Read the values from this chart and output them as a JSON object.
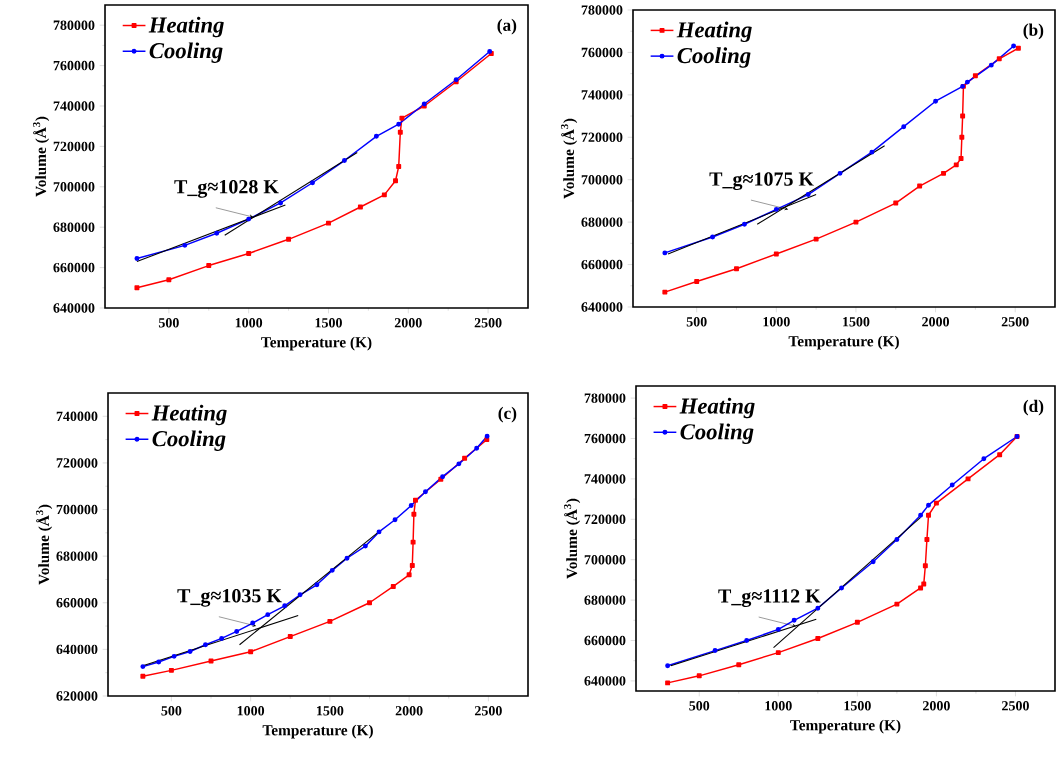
{
  "chart_data": [
    {
      "type": "line",
      "title": "(a)",
      "xlabel": "Temperature (K)",
      "ylabel": "Volume (Å$^{3}$)",
      "xlim": [
        100,
        2750
      ],
      "ylim": [
        640000,
        790000
      ],
      "xticks": [
        500,
        1000,
        1500,
        2000,
        2500
      ],
      "yticks": [
        640000,
        660000,
        680000,
        700000,
        720000,
        740000,
        760000,
        780000
      ],
      "legend": "top left",
      "annotations": [
        {
          "text": "T_g≈1028 K",
          "x": 1028,
          "y": 685000
        }
      ],
      "series": [
        {
          "name": "Heating",
          "color": "#ff0000",
          "marker": "square",
          "x": [
            300,
            500,
            750,
            1000,
            1250,
            1500,
            1700,
            1850,
            1920,
            1940,
            1950,
            1960,
            2100,
            2300,
            2520
          ],
          "values": [
            650000,
            654000,
            661000,
            667000,
            674000,
            682000,
            690000,
            696000,
            703000,
            710000,
            727000,
            734000,
            740000,
            752000,
            766000
          ]
        },
        {
          "name": "Cooling",
          "color": "#0000ff",
          "marker": "circle",
          "x": [
            2510,
            2300,
            2100,
            1940,
            1800,
            1600,
            1400,
            1200,
            1000,
            800,
            600,
            300
          ],
          "values": [
            767000,
            753000,
            741000,
            731000,
            725000,
            713000,
            702000,
            692000,
            684000,
            677000,
            671000,
            664500
          ]
        },
        {
          "type": "line",
          "color": "#000000",
          "marker": "none",
          "x": [
            300,
            1230
          ],
          "values": [
            663000,
            691000
          ]
        },
        {
          "type": "line",
          "color": "#000000",
          "marker": "none",
          "x": [
            850,
            1680
          ],
          "values": [
            676000,
            717000
          ]
        }
      ]
    },
    {
      "type": "line",
      "title": "(b)",
      "xlabel": "Temperature (K)",
      "ylabel": "Volume (Å$^{3}$)",
      "xlim": [
        100,
        2750
      ],
      "ylim": [
        640000,
        780000
      ],
      "xticks": [
        500,
        1000,
        1500,
        2000,
        2500
      ],
      "yticks": [
        640000,
        660000,
        680000,
        700000,
        720000,
        740000,
        760000,
        780000
      ],
      "legend": "top left",
      "annotations": [
        {
          "text": "T_g≈1075 K",
          "x": 1075,
          "y": 686000
        }
      ],
      "series": [
        {
          "name": "Heating",
          "color": "#ff0000",
          "marker": "square",
          "x": [
            300,
            500,
            750,
            1000,
            1250,
            1500,
            1750,
            1900,
            2050,
            2130,
            2160,
            2165,
            2170,
            2175,
            2250,
            2400,
            2520
          ],
          "values": [
            647000,
            652000,
            658000,
            665000,
            672000,
            680000,
            689000,
            697000,
            703000,
            707000,
            710000,
            720000,
            730000,
            744000,
            749000,
            757000,
            762000
          ]
        },
        {
          "name": "Cooling",
          "color": "#0000ff",
          "marker": "circle",
          "x": [
            2490,
            2350,
            2200,
            2170,
            2000,
            1800,
            1600,
            1400,
            1200,
            1000,
            800,
            600,
            300
          ],
          "values": [
            763000,
            754000,
            746000,
            744000,
            737000,
            725000,
            713000,
            703000,
            693000,
            686000,
            679000,
            673000,
            665500
          ]
        },
        {
          "type": "line",
          "color": "#000000",
          "marker": "none",
          "x": [
            320,
            1250
          ],
          "values": [
            665000,
            693000
          ]
        },
        {
          "type": "line",
          "color": "#000000",
          "marker": "none",
          "x": [
            880,
            1680
          ],
          "values": [
            679000,
            716000
          ]
        }
      ]
    },
    {
      "type": "line",
      "title": "(c)",
      "xlabel": "Temperature (K)",
      "ylabel": "Volume (Å$^{3}$)",
      "xlim": [
        100,
        2750
      ],
      "ylim": [
        620000,
        750000
      ],
      "xticks": [
        500,
        1000,
        1500,
        2000,
        2500
      ],
      "yticks": [
        620000,
        640000,
        660000,
        680000,
        700000,
        720000,
        740000
      ],
      "legend": "top left",
      "annotations": [
        {
          "text": "T_g≈1035 K",
          "x": 1035,
          "y": 650000
        }
      ],
      "series": [
        {
          "name": "Heating",
          "color": "#ff0000",
          "marker": "square",
          "x": [
            320,
            500,
            750,
            1000,
            1250,
            1500,
            1750,
            1900,
            2000,
            2020,
            2025,
            2030,
            2040,
            2200,
            2350,
            2490
          ],
          "values": [
            628500,
            631000,
            635000,
            639000,
            645500,
            652000,
            660000,
            667000,
            672000,
            676000,
            686000,
            698000,
            704000,
            713000,
            722000,
            730000
          ]
        },
        {
          "name": "Cooling",
          "color": "#0000ff",
          "marker": "circle",
          "x": [
            320,
            420,
            517,
            618,
            715,
            817,
            912,
            1013,
            1108,
            1215,
            1312,
            1418,
            1515,
            1608,
            1724,
            1810,
            1911,
            2013,
            2103,
            2211,
            2314,
            2426,
            2492
          ],
          "values": [
            632600,
            634600,
            637000,
            639100,
            642000,
            644700,
            647700,
            651300,
            654900,
            658700,
            663400,
            667700,
            673900,
            679100,
            684300,
            690400,
            695600,
            701700,
            707600,
            714100,
            719600,
            726300,
            731400
          ]
        },
        {
          "type": "line",
          "color": "#000000",
          "marker": "none",
          "x": [
            320,
            1300
          ],
          "values": [
            633000,
            654500
          ]
        },
        {
          "type": "line",
          "color": "#000000",
          "marker": "none",
          "x": [
            930,
            1800
          ],
          "values": [
            642000,
            690000
          ]
        }
      ]
    },
    {
      "type": "line",
      "title": "(d)",
      "xlabel": "Temperature (K)",
      "ylabel": "Volume (Å$^{3}$)",
      "xlim": [
        100,
        2750
      ],
      "ylim": [
        635000,
        786000
      ],
      "xticks": [
        500,
        1000,
        1500,
        2000,
        2500
      ],
      "yticks": [
        640000,
        660000,
        680000,
        700000,
        720000,
        740000,
        760000,
        780000
      ],
      "legend": "top left",
      "annotations": [
        {
          "text": "T_g≈1112 K",
          "x": 1112,
          "y": 667000
        }
      ],
      "series": [
        {
          "name": "Heating",
          "color": "#ff0000",
          "marker": "square",
          "x": [
            300,
            500,
            750,
            1000,
            1250,
            1500,
            1750,
            1900,
            1920,
            1930,
            1940,
            1950,
            2000,
            2200,
            2400,
            2510
          ],
          "values": [
            639000,
            642500,
            648000,
            654000,
            661000,
            669000,
            678000,
            686000,
            688000,
            697000,
            710000,
            722000,
            728000,
            740000,
            752000,
            761000
          ]
        },
        {
          "name": "Cooling",
          "color": "#0000ff",
          "marker": "circle",
          "x": [
            2510,
            2300,
            2100,
            1950,
            1900,
            1750,
            1600,
            1400,
            1250,
            1100,
            1000,
            800,
            600,
            300
          ],
          "values": [
            761000,
            750000,
            737000,
            727000,
            722000,
            710000,
            699000,
            686000,
            676000,
            670000,
            665500,
            660000,
            655000,
            647500
          ]
        },
        {
          "type": "line",
          "color": "#000000",
          "marker": "none",
          "x": [
            320,
            1240
          ],
          "values": [
            647500,
            670500
          ]
        },
        {
          "type": "line",
          "color": "#000000",
          "marker": "none",
          "x": [
            970,
            1900
          ],
          "values": [
            656500,
            721000
          ]
        }
      ]
    }
  ]
}
